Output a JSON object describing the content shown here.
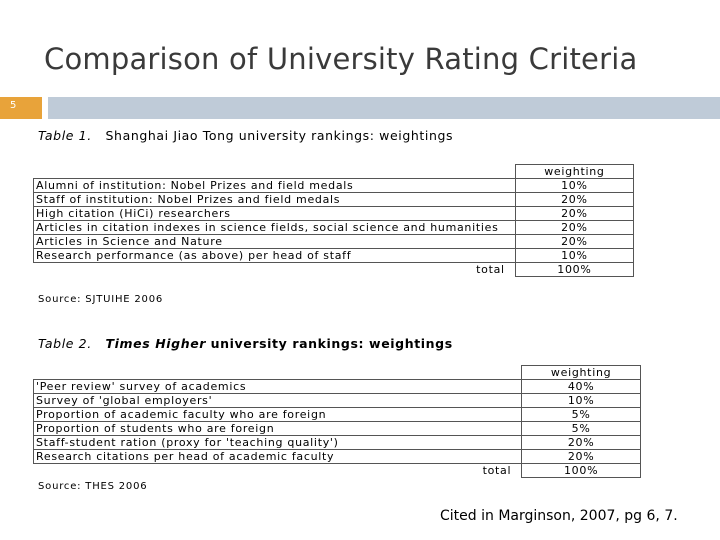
{
  "slide": {
    "title": "Comparison of University Rating Criteria",
    "number": "5",
    "accent_color": "#e8a33a",
    "rule_color": "#bfcbd8"
  },
  "table1": {
    "caption_lead": "Table 1.",
    "caption_text": "Shanghai Jiao Tong university rankings: weightings",
    "weight_header": "weighting",
    "rows": [
      {
        "criterion": "Alumni of institution: Nobel Prizes and field medals",
        "weight": "10%"
      },
      {
        "criterion": "Staff of institution: Nobel Prizes and field medals",
        "weight": "20%"
      },
      {
        "criterion": "High citation (HiCi) researchers",
        "weight": "20%"
      },
      {
        "criterion": "Articles in citation indexes in science fields, social science and humanities",
        "weight": "20%"
      },
      {
        "criterion": "Articles in Science and Nature",
        "weight": "20%"
      },
      {
        "criterion": "Research performance (as above) per head of staff",
        "weight": "10%"
      }
    ],
    "total_label": "total",
    "total_value": "100%",
    "source": "Source: SJTUIHE 2006"
  },
  "table2": {
    "caption_lead": "Table 2.",
    "caption_brand": "Times Higher",
    "caption_text": "university rankings: weightings",
    "weight_header": "weighting",
    "rows": [
      {
        "criterion": "'Peer review' survey of academics",
        "weight": "40%"
      },
      {
        "criterion": "Survey of 'global employers'",
        "weight": "10%"
      },
      {
        "criterion": "Proportion of academic faculty who are foreign",
        "weight": "5%"
      },
      {
        "criterion": "Proportion of students who are foreign",
        "weight": "5%"
      },
      {
        "criterion": "Staff-student ration (proxy for 'teaching quality')",
        "weight": "20%"
      },
      {
        "criterion": "Research citations per head of academic faculty",
        "weight": "20%"
      }
    ],
    "total_label": "total",
    "total_value": "100%",
    "source": "Source: THES 2006"
  },
  "citation": "Cited in Marginson, 2007, pg 6, 7."
}
